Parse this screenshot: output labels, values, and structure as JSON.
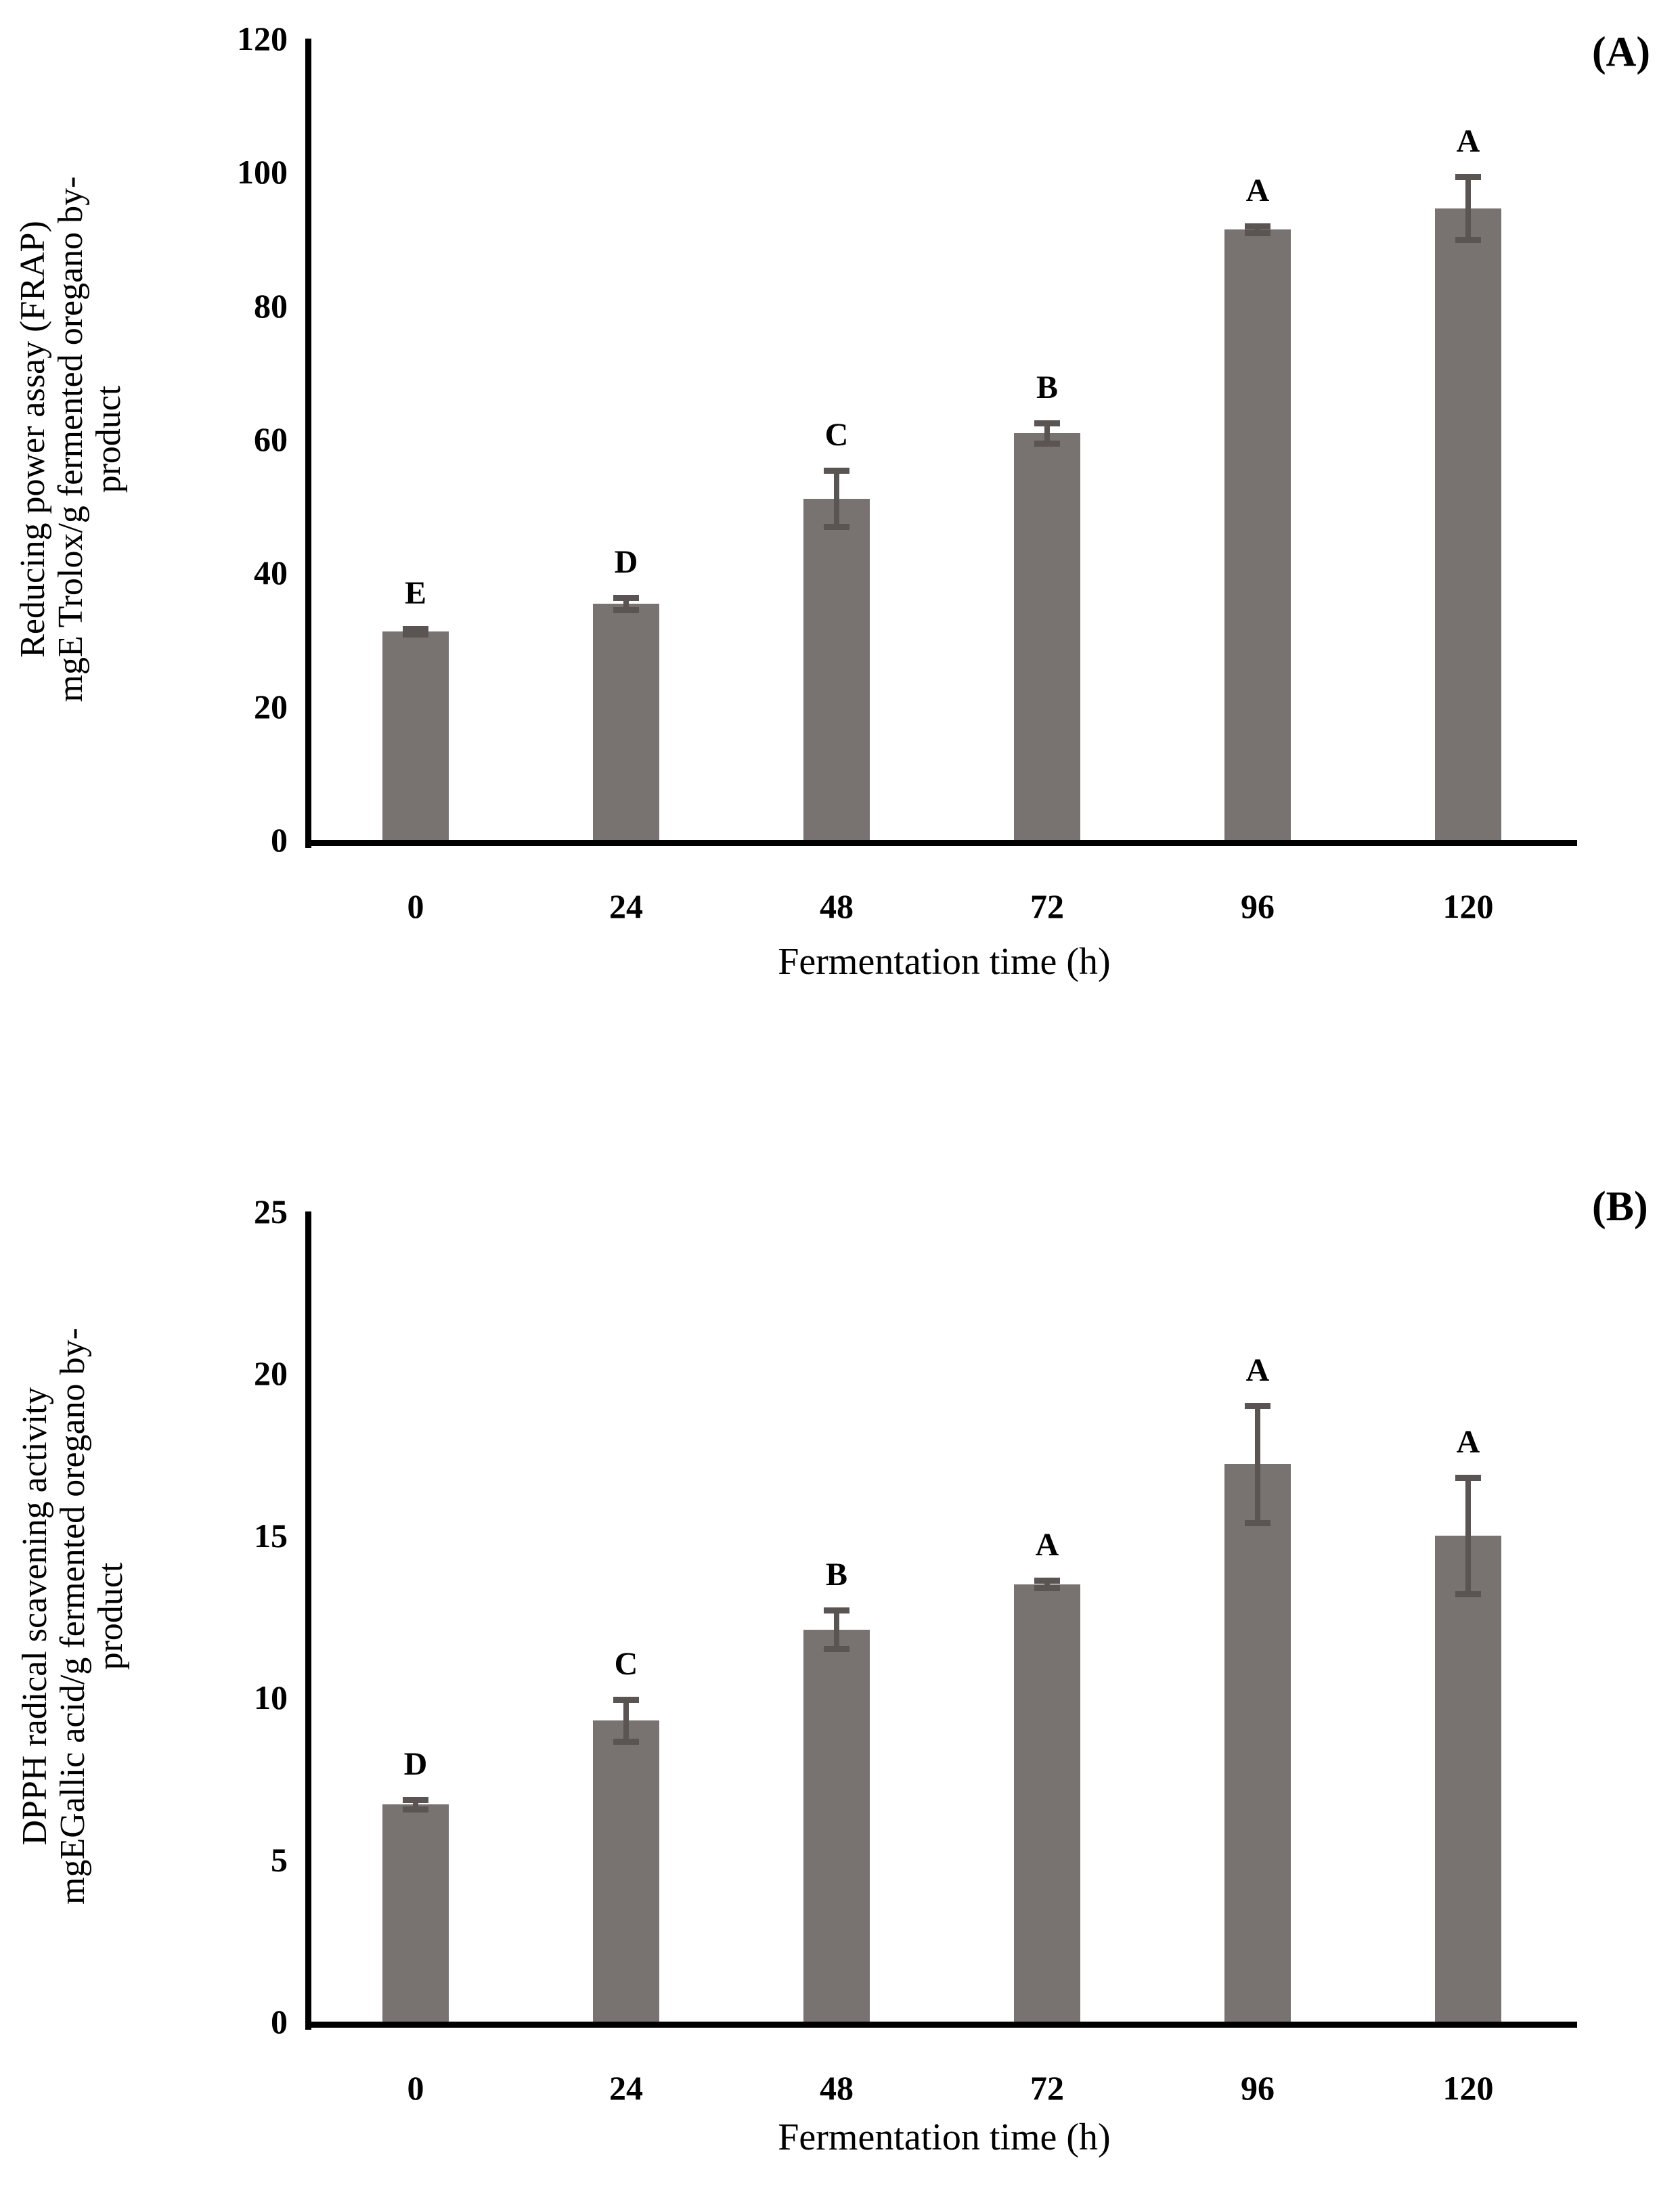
{
  "figure": {
    "background": "#ffffff",
    "colors": {
      "bar_fill": "#787271",
      "error_bar": "#5a5552",
      "axis": "#000000",
      "text": "#000000"
    }
  },
  "chart_data": [
    {
      "type": "bar",
      "panel_label": "(A)",
      "ylabel_lines": [
        "Reducing power assay (FRAP)",
        "mgE Trolox/g fermented oregano by-",
        "product"
      ],
      "xlabel": "Fermentation time (h)",
      "categories": [
        "0",
        "24",
        "48",
        "72",
        "96",
        "120"
      ],
      "values": [
        31.2,
        35.4,
        51.1,
        60.9,
        91.4,
        94.6
      ],
      "errors": [
        0.4,
        0.9,
        4.2,
        1.5,
        0.5,
        4.7
      ],
      "letters": [
        "E",
        "D",
        "C",
        "B",
        "A",
        "A"
      ],
      "ylim": [
        0,
        120
      ],
      "ytick_step": 20,
      "ytick_labels": [
        "0",
        "20",
        "40",
        "60",
        "80",
        "100",
        "120"
      ],
      "grid": false,
      "legend": null
    },
    {
      "type": "bar",
      "panel_label": "(B)",
      "ylabel_lines": [
        "DPPH radical scavening activity",
        "mgEGallic acid/g fermented oregano by-",
        "product"
      ],
      "xlabel": "Fermentation time (h)",
      "categories": [
        "0",
        "24",
        "48",
        "72",
        "96",
        "120"
      ],
      "values": [
        6.7,
        9.3,
        12.1,
        13.5,
        17.2,
        15.0
      ],
      "errors": [
        0.15,
        0.65,
        0.6,
        0.12,
        1.8,
        1.8
      ],
      "letters": [
        "D",
        "C",
        "B",
        "A",
        "A",
        "A"
      ],
      "ylim": [
        0,
        25
      ],
      "ytick_step": 5,
      "ytick_labels": [
        "0",
        "5",
        "10",
        "15",
        "20",
        "25"
      ],
      "grid": false,
      "legend": null
    }
  ]
}
